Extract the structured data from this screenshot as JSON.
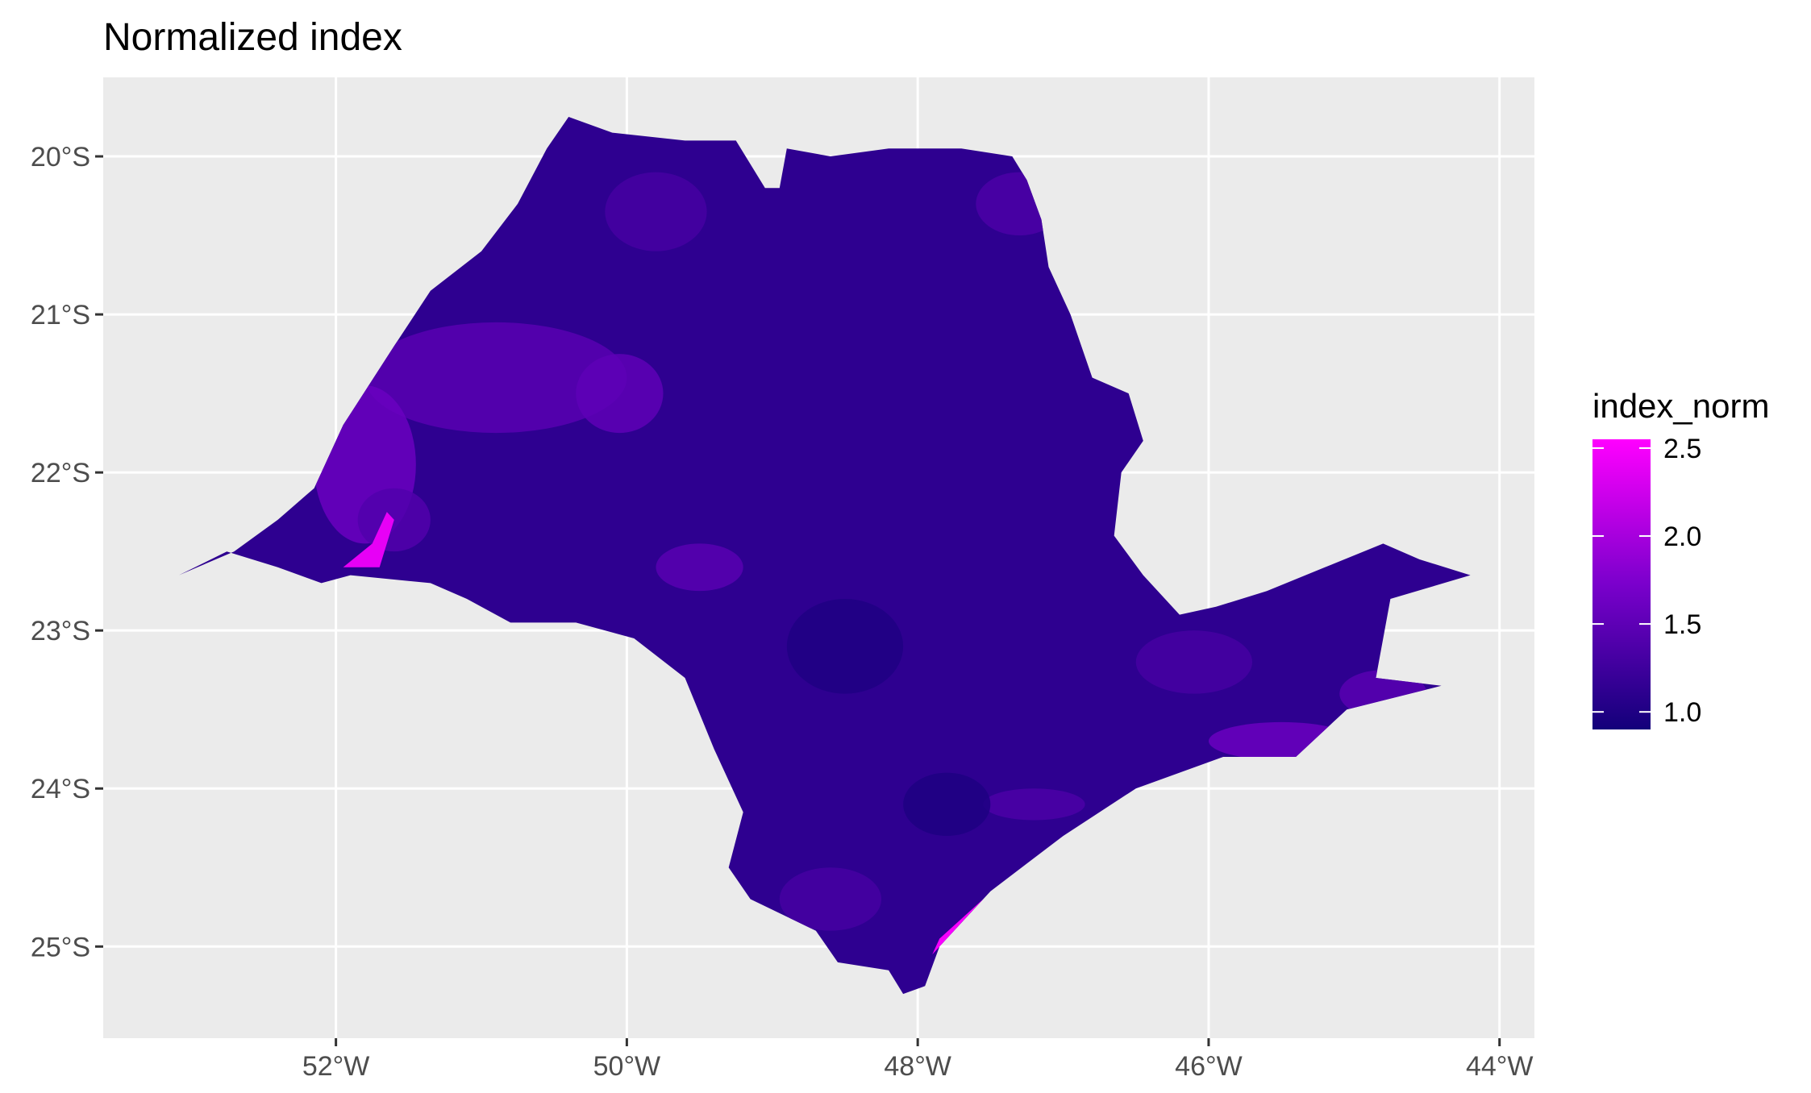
{
  "title": "Normalized index",
  "chart_data": {
    "type": "choropleth",
    "title": "Normalized index",
    "xlabel": "",
    "ylabel": "",
    "x_ticks": [
      {
        "value": -52,
        "label": "52°W"
      },
      {
        "value": -50,
        "label": "50°W"
      },
      {
        "value": -48,
        "label": "48°W"
      },
      {
        "value": -46,
        "label": "46°W"
      },
      {
        "value": -44,
        "label": "44°W"
      }
    ],
    "y_ticks": [
      {
        "value": -20,
        "label": "20°S"
      },
      {
        "value": -21,
        "label": "21°S"
      },
      {
        "value": -22,
        "label": "22°S"
      },
      {
        "value": -23,
        "label": "23°S"
      },
      {
        "value": -24,
        "label": "24°S"
      },
      {
        "value": -25,
        "label": "25°S"
      }
    ],
    "xlim": [
      -53.6,
      -43.76
    ],
    "ylim": [
      -25.58,
      -19.5
    ],
    "grid": true,
    "legend": {
      "title": "index_norm",
      "placement": "right",
      "range": [
        0.9,
        2.55
      ],
      "breaks": [
        {
          "value": 2.5,
          "label": "2.5"
        },
        {
          "value": 2.0,
          "label": "2.0"
        },
        {
          "value": 1.5,
          "label": "1.5"
        },
        {
          "value": 1.0,
          "label": "1.0"
        }
      ],
      "colors": [
        "#13007a",
        "#7a00cc",
        "#ff00ff"
      ]
    },
    "region": {
      "outline": [
        [
          -53.08,
          -22.65
        ],
        [
          -52.7,
          -22.5
        ],
        [
          -52.4,
          -22.3
        ],
        [
          -52.15,
          -22.1
        ],
        [
          -51.95,
          -21.7
        ],
        [
          -51.6,
          -21.2
        ],
        [
          -51.35,
          -20.85
        ],
        [
          -51.0,
          -20.6
        ],
        [
          -50.75,
          -20.3
        ],
        [
          -50.55,
          -19.95
        ],
        [
          -50.4,
          -19.75
        ],
        [
          -50.1,
          -19.85
        ],
        [
          -49.6,
          -19.9
        ],
        [
          -49.25,
          -19.9
        ],
        [
          -49.05,
          -20.2
        ],
        [
          -48.95,
          -20.2
        ],
        [
          -48.9,
          -19.95
        ],
        [
          -48.6,
          -20.0
        ],
        [
          -48.2,
          -19.95
        ],
        [
          -47.7,
          -19.95
        ],
        [
          -47.35,
          -20.0
        ],
        [
          -47.25,
          -20.15
        ],
        [
          -47.15,
          -20.4
        ],
        [
          -47.1,
          -20.7
        ],
        [
          -46.95,
          -21.0
        ],
        [
          -46.8,
          -21.4
        ],
        [
          -46.55,
          -21.5
        ],
        [
          -46.45,
          -21.8
        ],
        [
          -46.6,
          -22.0
        ],
        [
          -46.65,
          -22.4
        ],
        [
          -46.45,
          -22.65
        ],
        [
          -46.2,
          -22.9
        ],
        [
          -45.95,
          -22.85
        ],
        [
          -45.6,
          -22.75
        ],
        [
          -45.2,
          -22.6
        ],
        [
          -44.8,
          -22.45
        ],
        [
          -44.55,
          -22.55
        ],
        [
          -44.2,
          -22.65
        ],
        [
          -44.75,
          -22.8
        ],
        [
          -44.85,
          -23.3
        ],
        [
          -44.4,
          -23.35
        ],
        [
          -45.05,
          -23.5
        ],
        [
          -45.4,
          -23.8
        ],
        [
          -45.9,
          -23.8
        ],
        [
          -46.5,
          -24.0
        ],
        [
          -47.0,
          -24.3
        ],
        [
          -47.5,
          -24.65
        ],
        [
          -47.85,
          -25.0
        ],
        [
          -47.95,
          -25.25
        ],
        [
          -48.1,
          -25.3
        ],
        [
          -48.2,
          -25.15
        ],
        [
          -48.55,
          -25.1
        ],
        [
          -48.7,
          -24.9
        ],
        [
          -49.15,
          -24.7
        ],
        [
          -49.3,
          -24.5
        ],
        [
          -49.2,
          -24.15
        ],
        [
          -49.4,
          -23.75
        ],
        [
          -49.6,
          -23.3
        ],
        [
          -49.95,
          -23.05
        ],
        [
          -50.35,
          -22.95
        ],
        [
          -50.8,
          -22.95
        ],
        [
          -51.1,
          -22.8
        ],
        [
          -51.35,
          -22.7
        ],
        [
          -51.9,
          -22.65
        ],
        [
          -52.1,
          -22.7
        ],
        [
          -52.4,
          -22.6
        ],
        [
          -52.75,
          -22.5
        ],
        [
          -53.08,
          -22.65
        ]
      ],
      "areas": [
        {
          "lon": -48.0,
          "lat": -22.0,
          "rx": 4.2,
          "ry": 2.0,
          "value": 1.12
        },
        {
          "lon": -50.9,
          "lat": -21.4,
          "rx": 0.9,
          "ry": 0.35,
          "value": 1.45
        },
        {
          "lon": -51.8,
          "lat": -21.95,
          "rx": 0.35,
          "ry": 0.5,
          "value": 1.6
        },
        {
          "lon": -51.6,
          "lat": -22.3,
          "rx": 0.25,
          "ry": 0.2,
          "value": 1.4
        },
        {
          "lon": -50.05,
          "lat": -21.5,
          "rx": 0.3,
          "ry": 0.25,
          "value": 1.5
        },
        {
          "lon": -49.5,
          "lat": -22.6,
          "rx": 0.3,
          "ry": 0.15,
          "value": 1.45
        },
        {
          "lon": -49.8,
          "lat": -20.35,
          "rx": 0.35,
          "ry": 0.25,
          "value": 1.3
        },
        {
          "lon": -47.3,
          "lat": -20.3,
          "rx": 0.3,
          "ry": 0.2,
          "value": 1.35
        },
        {
          "lon": -46.1,
          "lat": -23.2,
          "rx": 0.4,
          "ry": 0.2,
          "value": 1.3
        },
        {
          "lon": -44.8,
          "lat": -23.4,
          "rx": 0.3,
          "ry": 0.15,
          "value": 1.45
        },
        {
          "lon": -45.5,
          "lat": -23.7,
          "rx": 0.5,
          "ry": 0.12,
          "value": 1.6
        },
        {
          "lon": -47.2,
          "lat": -24.1,
          "rx": 0.35,
          "ry": 0.1,
          "value": 1.35
        },
        {
          "lon": -48.5,
          "lat": -23.1,
          "rx": 0.4,
          "ry": 0.3,
          "value": 1.0
        },
        {
          "lon": -47.8,
          "lat": -24.1,
          "rx": 0.3,
          "ry": 0.2,
          "value": 0.98
        },
        {
          "lon": -48.6,
          "lat": -24.7,
          "rx": 0.35,
          "ry": 0.2,
          "value": 1.3
        }
      ],
      "highlights": [
        {
          "points": [
            [
              -51.95,
              -22.6
            ],
            [
              -51.7,
              -22.6
            ],
            [
              -51.6,
              -22.3
            ],
            [
              -51.65,
              -22.25
            ],
            [
              -51.75,
              -22.45
            ]
          ],
          "value": 2.4
        },
        {
          "points": [
            [
              -47.9,
              -25.05
            ],
            [
              -47.6,
              -24.75
            ],
            [
              -47.45,
              -24.65
            ],
            [
              -47.55,
              -24.7
            ],
            [
              -47.85,
              -24.95
            ]
          ],
          "value": 2.5
        }
      ]
    }
  }
}
